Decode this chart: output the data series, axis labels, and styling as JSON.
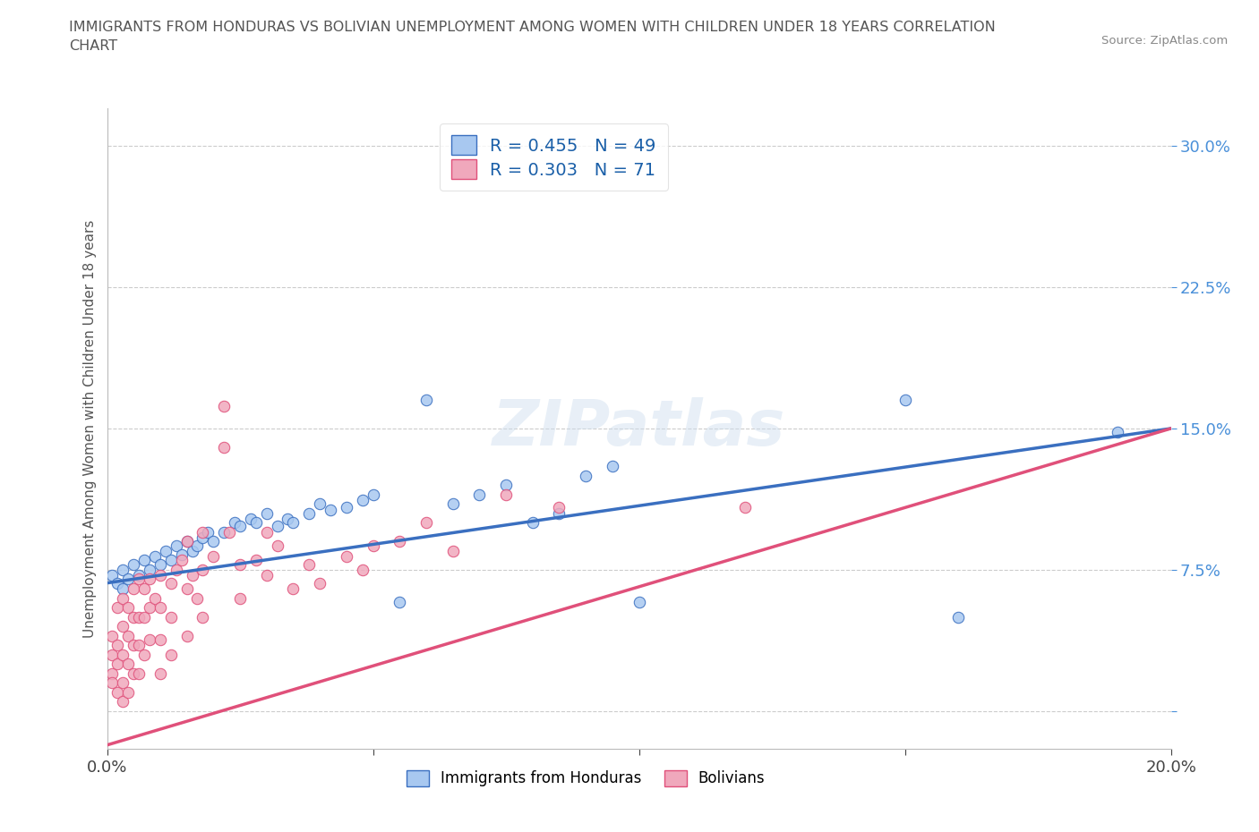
{
  "title": "IMMIGRANTS FROM HONDURAS VS BOLIVIAN UNEMPLOYMENT AMONG WOMEN WITH CHILDREN UNDER 18 YEARS CORRELATION\nCHART",
  "source": "Source: ZipAtlas.com",
  "ylabel": "Unemployment Among Women with Children Under 18 years",
  "xlim": [
    0.0,
    0.2
  ],
  "ylim": [
    -0.02,
    0.32
  ],
  "xticks": [
    0.0,
    0.05,
    0.1,
    0.15,
    0.2
  ],
  "xtick_labels": [
    "0.0%",
    "",
    "",
    "",
    "20.0%"
  ],
  "yticks": [
    0.0,
    0.075,
    0.15,
    0.225,
    0.3
  ],
  "ytick_labels": [
    "",
    "7.5%",
    "15.0%",
    "22.5%",
    "30.0%"
  ],
  "R_blue": 0.455,
  "N_blue": 49,
  "R_pink": 0.303,
  "N_pink": 71,
  "color_blue": "#a8c8f0",
  "color_pink": "#f0a8bc",
  "line_blue": "#3a6fc0",
  "line_pink": "#e0507a",
  "watermark": "ZIPatlas",
  "trendline_blue": [
    0.068,
    0.15
  ],
  "trendline_pink": [
    -0.018,
    0.15
  ],
  "blue_points": [
    [
      0.001,
      0.072
    ],
    [
      0.002,
      0.068
    ],
    [
      0.003,
      0.075
    ],
    [
      0.003,
      0.065
    ],
    [
      0.004,
      0.07
    ],
    [
      0.005,
      0.078
    ],
    [
      0.006,
      0.072
    ],
    [
      0.007,
      0.08
    ],
    [
      0.008,
      0.075
    ],
    [
      0.009,
      0.082
    ],
    [
      0.01,
      0.078
    ],
    [
      0.011,
      0.085
    ],
    [
      0.012,
      0.08
    ],
    [
      0.013,
      0.088
    ],
    [
      0.014,
      0.083
    ],
    [
      0.015,
      0.09
    ],
    [
      0.016,
      0.085
    ],
    [
      0.017,
      0.088
    ],
    [
      0.018,
      0.092
    ],
    [
      0.019,
      0.095
    ],
    [
      0.02,
      0.09
    ],
    [
      0.022,
      0.095
    ],
    [
      0.024,
      0.1
    ],
    [
      0.025,
      0.098
    ],
    [
      0.027,
      0.102
    ],
    [
      0.028,
      0.1
    ],
    [
      0.03,
      0.105
    ],
    [
      0.032,
      0.098
    ],
    [
      0.034,
      0.102
    ],
    [
      0.035,
      0.1
    ],
    [
      0.038,
      0.105
    ],
    [
      0.04,
      0.11
    ],
    [
      0.042,
      0.107
    ],
    [
      0.045,
      0.108
    ],
    [
      0.048,
      0.112
    ],
    [
      0.05,
      0.115
    ],
    [
      0.055,
      0.058
    ],
    [
      0.06,
      0.165
    ],
    [
      0.065,
      0.11
    ],
    [
      0.07,
      0.115
    ],
    [
      0.075,
      0.12
    ],
    [
      0.08,
      0.1
    ],
    [
      0.085,
      0.105
    ],
    [
      0.09,
      0.125
    ],
    [
      0.095,
      0.13
    ],
    [
      0.1,
      0.058
    ],
    [
      0.15,
      0.165
    ],
    [
      0.16,
      0.05
    ],
    [
      0.19,
      0.148
    ]
  ],
  "pink_points": [
    [
      0.001,
      0.04
    ],
    [
      0.001,
      0.03
    ],
    [
      0.001,
      0.02
    ],
    [
      0.001,
      0.015
    ],
    [
      0.002,
      0.055
    ],
    [
      0.002,
      0.035
    ],
    [
      0.002,
      0.025
    ],
    [
      0.002,
      0.01
    ],
    [
      0.003,
      0.06
    ],
    [
      0.003,
      0.045
    ],
    [
      0.003,
      0.03
    ],
    [
      0.003,
      0.015
    ],
    [
      0.003,
      0.005
    ],
    [
      0.004,
      0.055
    ],
    [
      0.004,
      0.04
    ],
    [
      0.004,
      0.025
    ],
    [
      0.004,
      0.01
    ],
    [
      0.005,
      0.065
    ],
    [
      0.005,
      0.05
    ],
    [
      0.005,
      0.035
    ],
    [
      0.005,
      0.02
    ],
    [
      0.006,
      0.07
    ],
    [
      0.006,
      0.05
    ],
    [
      0.006,
      0.035
    ],
    [
      0.006,
      0.02
    ],
    [
      0.007,
      0.065
    ],
    [
      0.007,
      0.05
    ],
    [
      0.007,
      0.03
    ],
    [
      0.008,
      0.07
    ],
    [
      0.008,
      0.055
    ],
    [
      0.008,
      0.038
    ],
    [
      0.009,
      0.06
    ],
    [
      0.01,
      0.072
    ],
    [
      0.01,
      0.055
    ],
    [
      0.01,
      0.038
    ],
    [
      0.01,
      0.02
    ],
    [
      0.012,
      0.068
    ],
    [
      0.012,
      0.05
    ],
    [
      0.012,
      0.03
    ],
    [
      0.013,
      0.075
    ],
    [
      0.014,
      0.08
    ],
    [
      0.015,
      0.09
    ],
    [
      0.015,
      0.065
    ],
    [
      0.015,
      0.04
    ],
    [
      0.016,
      0.072
    ],
    [
      0.017,
      0.06
    ],
    [
      0.018,
      0.095
    ],
    [
      0.018,
      0.075
    ],
    [
      0.018,
      0.05
    ],
    [
      0.02,
      0.082
    ],
    [
      0.022,
      0.162
    ],
    [
      0.022,
      0.14
    ],
    [
      0.023,
      0.095
    ],
    [
      0.025,
      0.078
    ],
    [
      0.025,
      0.06
    ],
    [
      0.028,
      0.08
    ],
    [
      0.03,
      0.095
    ],
    [
      0.03,
      0.072
    ],
    [
      0.032,
      0.088
    ],
    [
      0.035,
      0.065
    ],
    [
      0.038,
      0.078
    ],
    [
      0.04,
      0.068
    ],
    [
      0.045,
      0.082
    ],
    [
      0.048,
      0.075
    ],
    [
      0.05,
      0.088
    ],
    [
      0.055,
      0.09
    ],
    [
      0.06,
      0.1
    ],
    [
      0.065,
      0.085
    ],
    [
      0.075,
      0.115
    ],
    [
      0.085,
      0.108
    ],
    [
      0.12,
      0.108
    ]
  ]
}
